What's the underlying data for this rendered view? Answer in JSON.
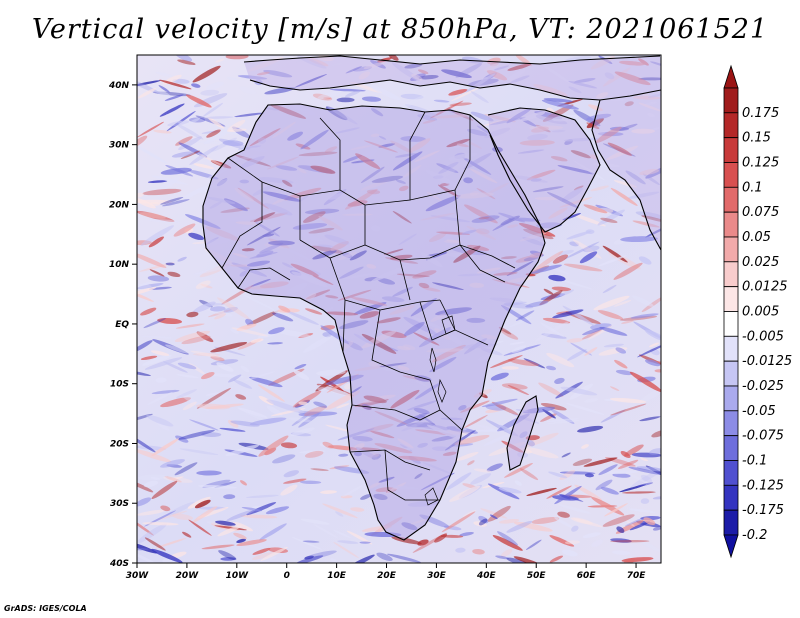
{
  "title": "Vertical velocity [m/s] at 850hPa, VT: 2021061521",
  "credit": "GrADS: IGES/COLA",
  "map": {
    "region": "Africa",
    "lon_range": [
      -30,
      75
    ],
    "lat_range": [
      -40,
      45
    ],
    "lat_ticks": [
      {
        "value": 40,
        "label": "40N"
      },
      {
        "value": 30,
        "label": "30N"
      },
      {
        "value": 20,
        "label": "20N"
      },
      {
        "value": 10,
        "label": "10N"
      },
      {
        "value": 0,
        "label": "EQ"
      },
      {
        "value": -10,
        "label": "10S"
      },
      {
        "value": -20,
        "label": "20S"
      },
      {
        "value": -30,
        "label": "30S"
      },
      {
        "value": -40,
        "label": "40S"
      }
    ],
    "lon_ticks": [
      {
        "value": -30,
        "label": "30W"
      },
      {
        "value": -20,
        "label": "20W"
      },
      {
        "value": -10,
        "label": "10W"
      },
      {
        "value": 0,
        "label": "0"
      },
      {
        "value": 10,
        "label": "10E"
      },
      {
        "value": 20,
        "label": "20E"
      },
      {
        "value": 30,
        "label": "30E"
      },
      {
        "value": 40,
        "label": "40E"
      },
      {
        "value": 50,
        "label": "50E"
      },
      {
        "value": 60,
        "label": "60E"
      },
      {
        "value": 70,
        "label": "70E"
      }
    ]
  },
  "colorbar": {
    "levels": [
      {
        "label": "0.175",
        "color": "#a01c1c"
      },
      {
        "label": "0.15",
        "color": "#b42828"
      },
      {
        "label": "0.125",
        "color": "#c83a3a"
      },
      {
        "label": "0.1",
        "color": "#d85050"
      },
      {
        "label": "0.075",
        "color": "#e26a6a"
      },
      {
        "label": "0.05",
        "color": "#ea8a8a"
      },
      {
        "label": "0.025",
        "color": "#f2aaaa"
      },
      {
        "label": "0.0125",
        "color": "#f8cccc"
      },
      {
        "label": "0.005",
        "color": "#fce6e6"
      },
      {
        "label": "-0.005",
        "color": "#ffffff"
      },
      {
        "label": "-0.0125",
        "color": "#e2e2fa"
      },
      {
        "label": "-0.025",
        "color": "#c6c6f4"
      },
      {
        "label": "-0.05",
        "color": "#aaaaee"
      },
      {
        "label": "-0.075",
        "color": "#8c8ce6"
      },
      {
        "label": "-0.1",
        "color": "#6e6edc"
      },
      {
        "label": "-0.125",
        "color": "#5050d0"
      },
      {
        "label": "-0.175",
        "color": "#3434c0"
      },
      {
        "label": "-0.2",
        "color": "#1c1ca8"
      }
    ],
    "top_color": "#9a1414",
    "bottom_color": "#1010a0"
  }
}
